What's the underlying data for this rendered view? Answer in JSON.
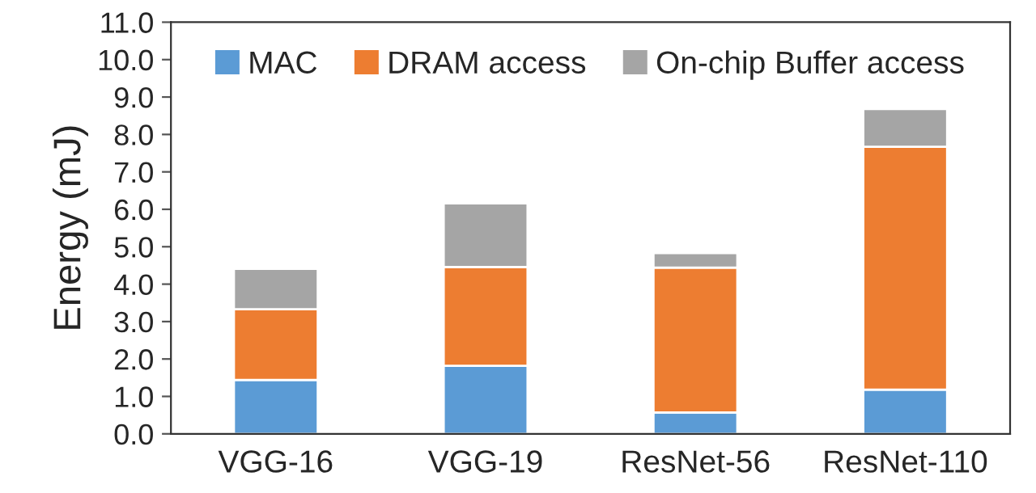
{
  "chart_data": {
    "type": "bar",
    "stacked": true,
    "ylabel": "Energy (mJ)",
    "categories": [
      "VGG-16",
      "VGG-19",
      "ResNet-56",
      "ResNet-110"
    ],
    "series": [
      {
        "name": "MAC",
        "color": "#5b9bd5",
        "values": [
          1.44,
          1.82,
          0.57,
          1.18
        ]
      },
      {
        "name": "DRAM access",
        "color": "#ed7d31",
        "values": [
          1.89,
          2.64,
          3.87,
          6.49
        ]
      },
      {
        "name": "On-chip Buffer access",
        "color": "#a5a5a5",
        "values": [
          1.08,
          1.7,
          0.39,
          1.01
        ]
      }
    ],
    "ylim": [
      0,
      11
    ],
    "yticks": [
      {
        "value": 0,
        "label": "0.0"
      },
      {
        "value": 1,
        "label": "1.0"
      },
      {
        "value": 2,
        "label": "2.0"
      },
      {
        "value": 3,
        "label": "3.0"
      },
      {
        "value": 4,
        "label": "4.0"
      },
      {
        "value": 5,
        "label": "5.0"
      },
      {
        "value": 6,
        "label": "6.0"
      },
      {
        "value": 7,
        "label": "7.0"
      },
      {
        "value": 8,
        "label": "8.0"
      },
      {
        "value": 9,
        "label": "9.0"
      },
      {
        "value": 10,
        "label": "10.0"
      },
      {
        "value": 11,
        "label": "11.0"
      }
    ],
    "grid": false,
    "legend": "top"
  }
}
